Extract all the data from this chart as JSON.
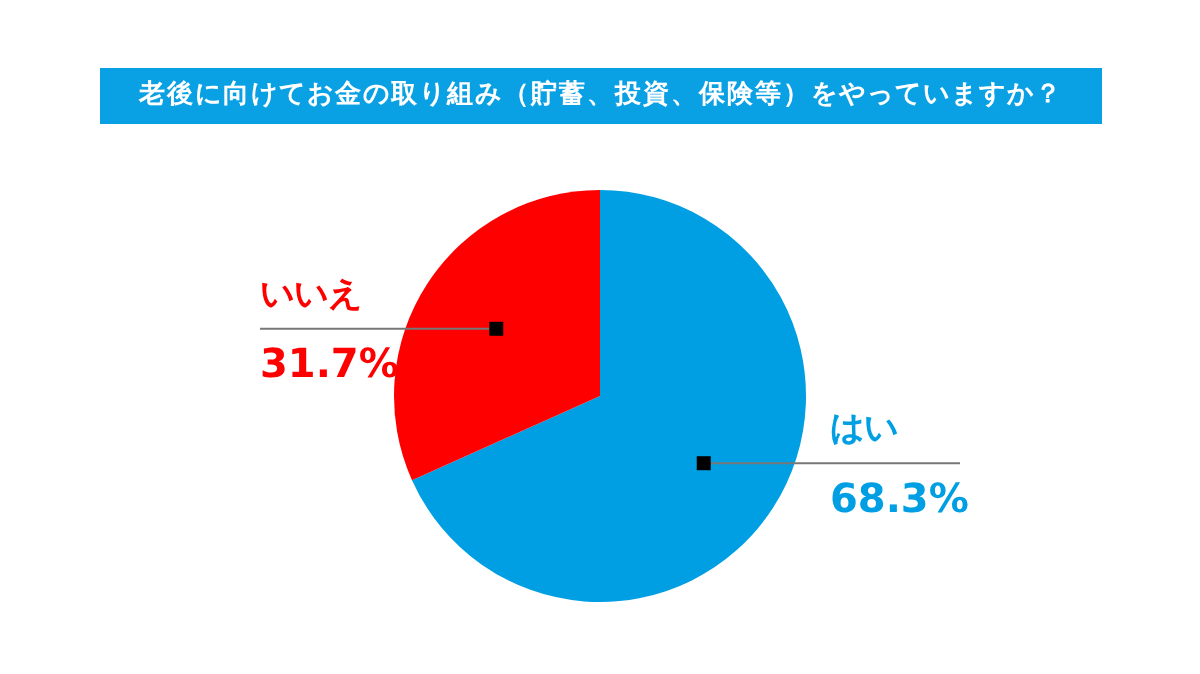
{
  "chart_data": {
    "type": "pie",
    "title": "老後に向けてお金の取り組み（貯蓄、投資、保険等）をやっていますか？",
    "categories": [
      "はい",
      "いいえ"
    ],
    "values": [
      68.3,
      31.7
    ],
    "colors": [
      "#009fe3",
      "#ff0000"
    ],
    "value_labels": [
      "68.3%",
      "31.7%"
    ],
    "legend": false
  }
}
